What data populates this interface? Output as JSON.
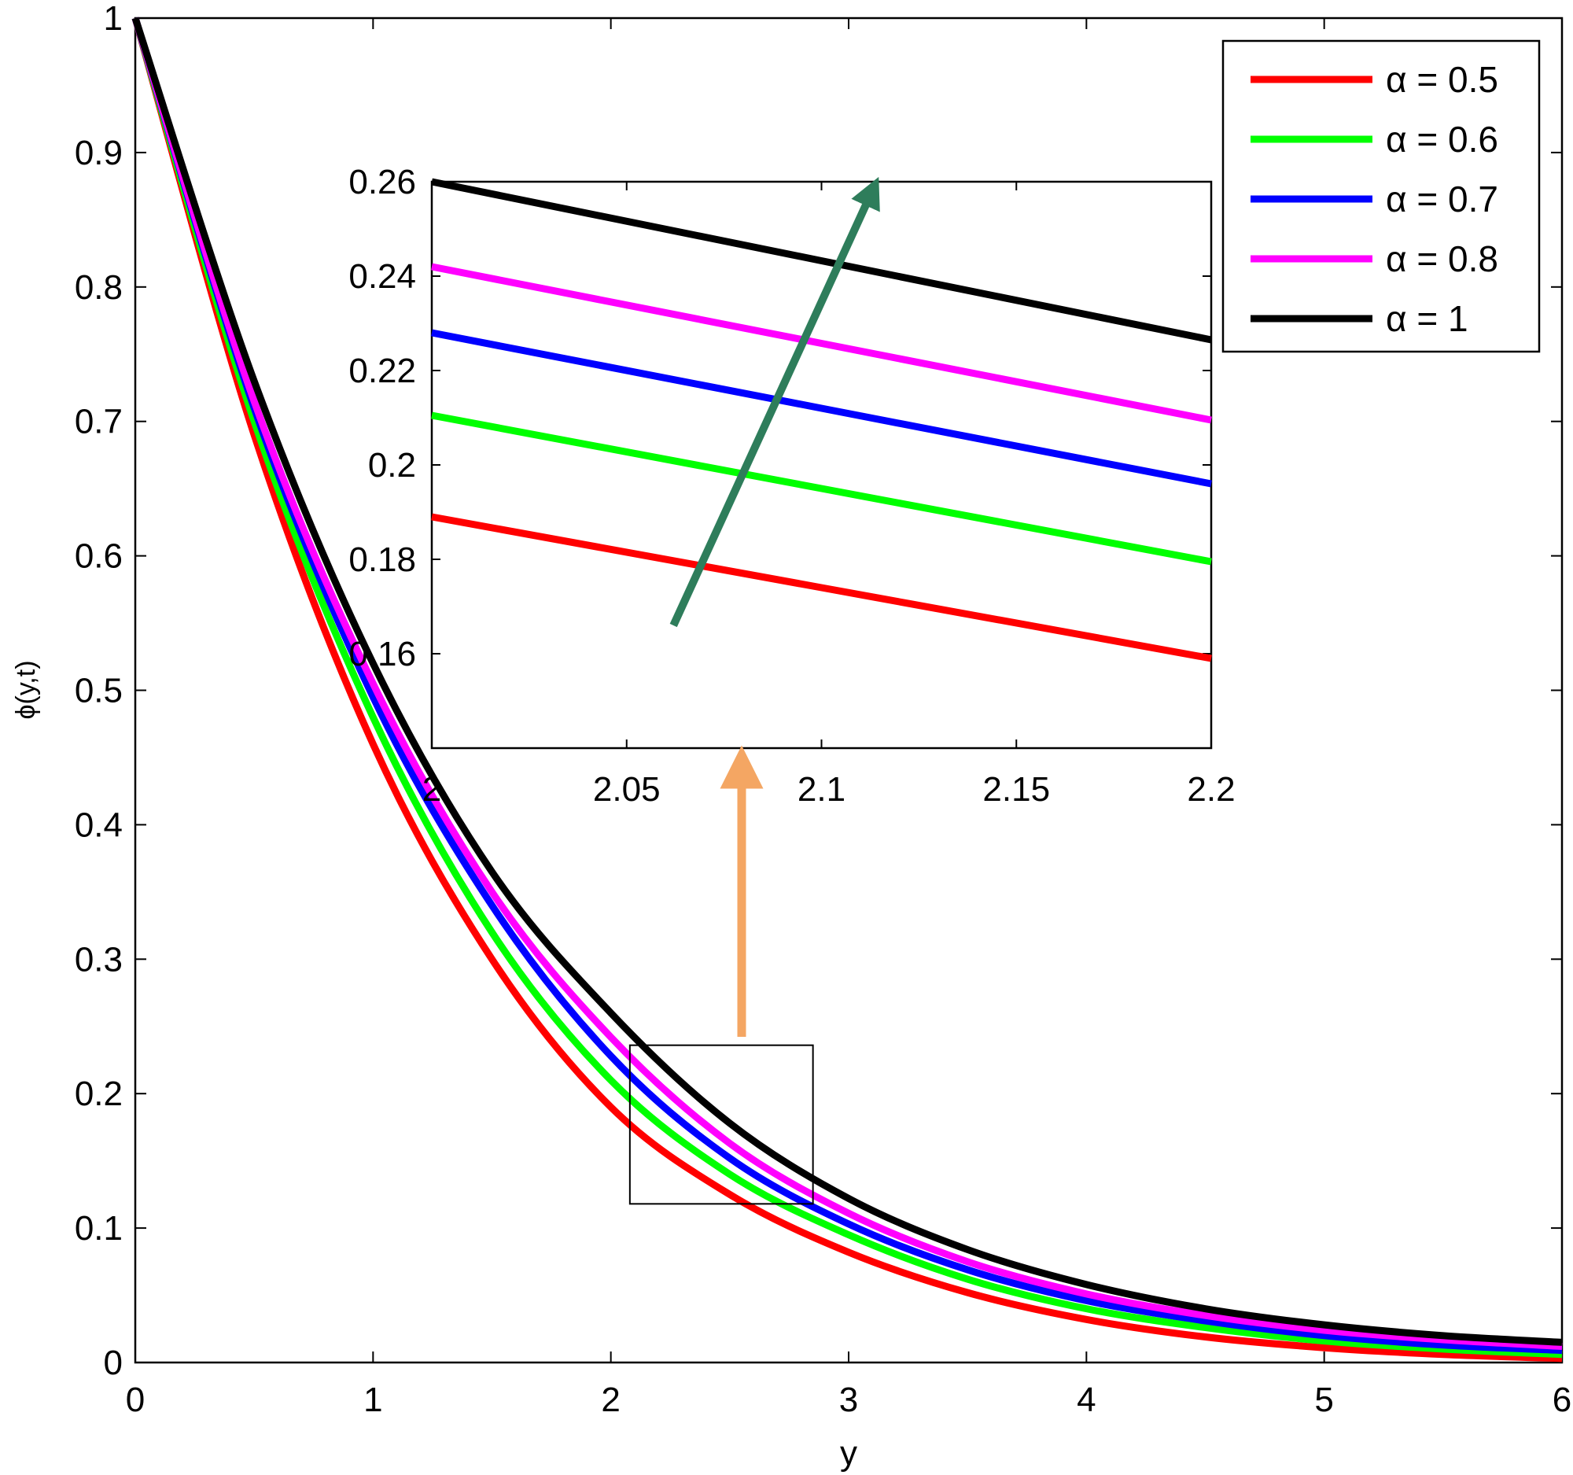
{
  "colors": {
    "background": "#ffffff",
    "axes": "#000000",
    "zoom_arrow": "#F4A663",
    "trend_arrow": "#2E7D5B"
  },
  "chart_data": [
    {
      "type": "line",
      "role": "main",
      "title": "",
      "xlabel": "y",
      "ylabel": "ϕ(y,t)",
      "xlim": [
        0,
        6
      ],
      "ylim": [
        0,
        1
      ],
      "x_ticks": [
        0,
        1,
        2,
        3,
        4,
        5,
        6
      ],
      "x_tick_labels": [
        "0",
        "1",
        "2",
        "3",
        "4",
        "5",
        "6"
      ],
      "y_ticks": [
        0,
        0.1,
        0.2,
        0.3,
        0.4,
        0.5,
        0.6,
        0.7,
        0.8,
        0.9,
        1
      ],
      "y_tick_labels": [
        "0",
        "0.1",
        "0.2",
        "0.3",
        "0.4",
        "0.5",
        "0.6",
        "0.7",
        "0.8",
        "0.9",
        "1"
      ],
      "grid": false,
      "legend": "top-right",
      "x": [
        0,
        0.5,
        1,
        1.5,
        2,
        2.5,
        3,
        3.5,
        4,
        4.5,
        5,
        5.5,
        6
      ],
      "series": [
        {
          "name": "α = 0.5",
          "color": "#FF0000",
          "values": [
            1.0,
            0.69,
            0.46,
            0.3,
            0.19,
            0.125,
            0.082,
            0.052,
            0.032,
            0.019,
            0.011,
            0.006,
            0.003
          ]
        },
        {
          "name": "α = 0.6",
          "color": "#00FF00",
          "values": [
            1.0,
            0.7,
            0.48,
            0.32,
            0.21,
            0.14,
            0.095,
            0.062,
            0.04,
            0.026,
            0.016,
            0.01,
            0.006
          ]
        },
        {
          "name": "α = 0.7",
          "color": "#0000FF",
          "values": [
            1.0,
            0.71,
            0.495,
            0.34,
            0.228,
            0.152,
            0.103,
            0.069,
            0.046,
            0.031,
            0.02,
            0.013,
            0.009
          ]
        },
        {
          "name": "α = 0.8",
          "color": "#FF00FF",
          "values": [
            1.0,
            0.715,
            0.505,
            0.35,
            0.242,
            0.163,
            0.111,
            0.075,
            0.051,
            0.035,
            0.024,
            0.017,
            0.012
          ]
        },
        {
          "name": "α = 1",
          "color": "#000000",
          "values": [
            1.0,
            0.73,
            0.52,
            0.365,
            0.26,
            0.178,
            0.122,
            0.084,
            0.058,
            0.04,
            0.028,
            0.02,
            0.015
          ]
        }
      ],
      "zoom_region": {
        "x": [
          2.08,
          2.85
        ],
        "y": [
          0.118,
          0.236
        ]
      }
    },
    {
      "type": "line",
      "role": "inset",
      "title": "",
      "xlim": [
        2,
        2.2
      ],
      "ylim": [
        0.14,
        0.26
      ],
      "x_ticks": [
        2,
        2.05,
        2.1,
        2.15,
        2.2
      ],
      "x_tick_labels": [
        "2",
        "2.05",
        "2.1",
        "2.15",
        "2.2"
      ],
      "y_ticks": [
        0.16,
        0.18,
        0.2,
        0.22,
        0.24,
        0.26
      ],
      "y_tick_labels": [
        "0.16",
        "0.18",
        "0.2",
        "0.22",
        "0.24",
        "0.26"
      ],
      "grid": false,
      "x": [
        2,
        2.2
      ],
      "series": [
        {
          "name": "α = 0.5",
          "color": "#FF0000",
          "values": [
            0.189,
            0.159
          ]
        },
        {
          "name": "α = 0.6",
          "color": "#00FF00",
          "values": [
            0.2105,
            0.1795
          ]
        },
        {
          "name": "α = 0.7",
          "color": "#0000FF",
          "values": [
            0.228,
            0.196
          ]
        },
        {
          "name": "α = 0.8",
          "color": "#FF00FF",
          "values": [
            0.242,
            0.2095
          ]
        },
        {
          "name": "α = 1",
          "color": "#000000",
          "values": [
            0.26,
            0.2265
          ]
        }
      ],
      "trend_arrow": {
        "from": [
          2.062,
          0.166
        ],
        "to": [
          2.113,
          0.258
        ]
      }
    }
  ]
}
